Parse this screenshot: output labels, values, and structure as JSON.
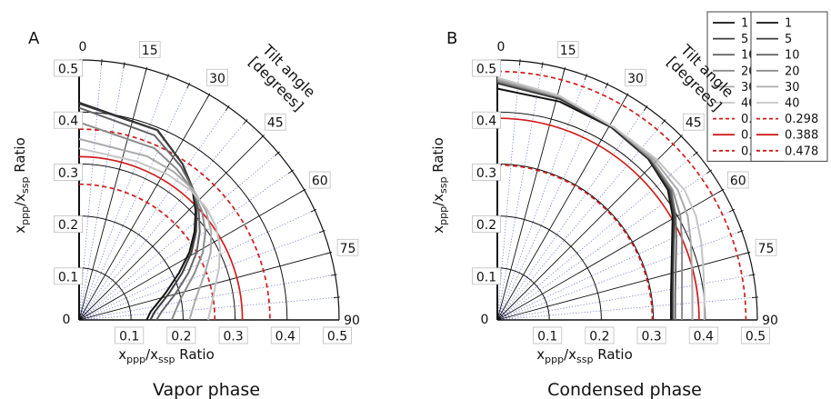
{
  "chart_data": [
    {
      "type": "polar-line",
      "panel_label": "A",
      "caption": "Vapor phase",
      "radial_ticks": [
        "0.1",
        "0.2",
        "0.3",
        "0.4",
        "0.5"
      ],
      "x_tick_labels": [
        "0",
        "0.1",
        "0.2",
        "0.3",
        "0.4",
        "0.5"
      ],
      "y_tick_labels": [
        "0.1",
        "0.2",
        "0.3",
        "0.4",
        "0.5"
      ],
      "angle_ticks": [
        "0",
        "15",
        "30",
        "45",
        "60",
        "75",
        "90"
      ],
      "angle_label": "Tilt angle [degrees]",
      "xlabel": {
        "main": "x",
        "sub1": "ppp",
        "mid": "/x",
        "sub2": "ssp",
        "tail": " Ratio"
      },
      "ylabel": {
        "main": "x",
        "sub1": "ppp",
        "mid": "/x",
        "sub2": "ssp",
        "tail": " Ratio"
      },
      "rlim": [
        0,
        0.5
      ],
      "tilt_series": [
        {
          "name": "1",
          "color": "#111111",
          "x": [
            0.13,
            0.137,
            0.165,
            0.192,
            0.212,
            0.222,
            0.224,
            0.218,
            0.199,
            0.151,
            0.0
          ],
          "y": [
            0.0,
            0.015,
            0.05,
            0.09,
            0.13,
            0.17,
            0.21,
            0.25,
            0.3,
            0.365,
            0.418
          ]
        },
        {
          "name": "5",
          "color": "#3c3c3c",
          "x": [
            0.137,
            0.145,
            0.172,
            0.198,
            0.216,
            0.225,
            0.226,
            0.22,
            0.199,
            0.15,
            0.0
          ],
          "y": [
            0.0,
            0.015,
            0.05,
            0.09,
            0.13,
            0.17,
            0.21,
            0.25,
            0.3,
            0.365,
            0.416
          ]
        },
        {
          "name": "10",
          "color": "#666666",
          "x": [
            0.149,
            0.158,
            0.185,
            0.21,
            0.226,
            0.232,
            0.23,
            0.22,
            0.196,
            0.145,
            0.0
          ],
          "y": [
            0.0,
            0.015,
            0.05,
            0.09,
            0.13,
            0.17,
            0.21,
            0.25,
            0.295,
            0.355,
            0.408
          ]
        },
        {
          "name": "20",
          "color": "#8c8c8c",
          "x": [
            0.178,
            0.195,
            0.222,
            0.238,
            0.243,
            0.236,
            0.218,
            0.188,
            0.145,
            0.0
          ],
          "y": [
            0.0,
            0.04,
            0.09,
            0.13,
            0.17,
            0.21,
            0.25,
            0.29,
            0.33,
            0.38
          ]
        },
        {
          "name": "30",
          "color": "#aaaaaa",
          "x": [
            0.212,
            0.224,
            0.242,
            0.253,
            0.254,
            0.244,
            0.22,
            0.182,
            0.13,
            0.0
          ],
          "y": [
            0.0,
            0.04,
            0.09,
            0.13,
            0.17,
            0.21,
            0.25,
            0.285,
            0.315,
            0.348
          ]
        },
        {
          "name": "40",
          "color": "#c4c4c4",
          "x": [
            0.248,
            0.259,
            0.269,
            0.271,
            0.263,
            0.245,
            0.214,
            0.17,
            0.11,
            0.0
          ],
          "y": [
            0.0,
            0.05,
            0.1,
            0.14,
            0.18,
            0.215,
            0.25,
            0.28,
            0.305,
            0.33
          ]
        }
      ],
      "circle_series": [
        {
          "name": "0.261",
          "value": 0.261,
          "color": "#d01c1c",
          "dash": true
        },
        {
          "name": "0.314",
          "value": 0.314,
          "color": "#d01c1c",
          "dash": false
        },
        {
          "name": "0.367",
          "value": 0.367,
          "color": "#d01c1c",
          "dash": true
        }
      ]
    },
    {
      "type": "polar-line",
      "panel_label": "B",
      "caption": "Condensed phase",
      "radial_ticks": [
        "0.1",
        "0.2",
        "0.3",
        "0.4",
        "0.5"
      ],
      "x_tick_labels": [
        "0",
        "0.1",
        "0.2",
        "0.3",
        "0.4",
        "0.5"
      ],
      "y_tick_labels": [
        "0.1",
        "0.2",
        "0.3",
        "0.4",
        "0.5"
      ],
      "angle_ticks": [
        "0",
        "15",
        "30",
        "45",
        "60",
        "75",
        "90"
      ],
      "angle_label": "Tilt angle [degrees]",
      "xlabel": {
        "main": "x",
        "sub1": "ppp",
        "mid": "/x",
        "sub2": "ssp",
        "tail": " Ratio"
      },
      "ylabel": {
        "main": "x",
        "sub1": "ppp",
        "mid": "/x",
        "sub2": "ssp",
        "tail": " Ratio"
      },
      "rlim": [
        0,
        0.5
      ],
      "tilt_series": [
        {
          "name": "1",
          "color": "#111111",
          "x": [
            0.334,
            0.334,
            0.335,
            0.336,
            0.337,
            0.328,
            0.29,
            0.22,
            0.12,
            0.0
          ],
          "y": [
            0.0,
            0.05,
            0.1,
            0.15,
            0.2,
            0.25,
            0.31,
            0.37,
            0.42,
            0.445
          ]
        },
        {
          "name": "5",
          "color": "#3c3c3c",
          "x": [
            0.337,
            0.337,
            0.338,
            0.339,
            0.34,
            0.331,
            0.292,
            0.222,
            0.12,
            0.0
          ],
          "y": [
            0.0,
            0.05,
            0.1,
            0.15,
            0.2,
            0.25,
            0.31,
            0.37,
            0.425,
            0.455
          ]
        },
        {
          "name": "10",
          "color": "#666666",
          "x": [
            0.342,
            0.342,
            0.343,
            0.344,
            0.343,
            0.334,
            0.295,
            0.225,
            0.122,
            0.0
          ],
          "y": [
            0.0,
            0.05,
            0.1,
            0.15,
            0.2,
            0.25,
            0.31,
            0.37,
            0.428,
            0.458
          ]
        },
        {
          "name": "20",
          "color": "#8c8c8c",
          "x": [
            0.355,
            0.355,
            0.355,
            0.355,
            0.352,
            0.337,
            0.295,
            0.225,
            0.122,
            0.0
          ],
          "y": [
            0.0,
            0.05,
            0.1,
            0.15,
            0.2,
            0.25,
            0.31,
            0.37,
            0.428,
            0.46
          ]
        },
        {
          "name": "30",
          "color": "#aaaaaa",
          "x": [
            0.375,
            0.375,
            0.374,
            0.372,
            0.366,
            0.347,
            0.3,
            0.225,
            0.12,
            0.0
          ],
          "y": [
            0.0,
            0.05,
            0.1,
            0.15,
            0.2,
            0.25,
            0.31,
            0.37,
            0.43,
            0.463
          ]
        },
        {
          "name": "40",
          "color": "#c4c4c4",
          "x": [
            0.398,
            0.398,
            0.396,
            0.392,
            0.382,
            0.36,
            0.305,
            0.225,
            0.118,
            0.0
          ],
          "y": [
            0.0,
            0.05,
            0.1,
            0.15,
            0.2,
            0.25,
            0.31,
            0.37,
            0.432,
            0.466
          ]
        }
      ],
      "circle_series": [
        {
          "name": "0.298",
          "value": 0.298,
          "color": "#d01c1c",
          "dash": true
        },
        {
          "name": "0.388",
          "value": 0.388,
          "color": "#d01c1c",
          "dash": false
        },
        {
          "name": "0.478",
          "value": 0.478,
          "color": "#d01c1c",
          "dash": true
        }
      ]
    }
  ]
}
